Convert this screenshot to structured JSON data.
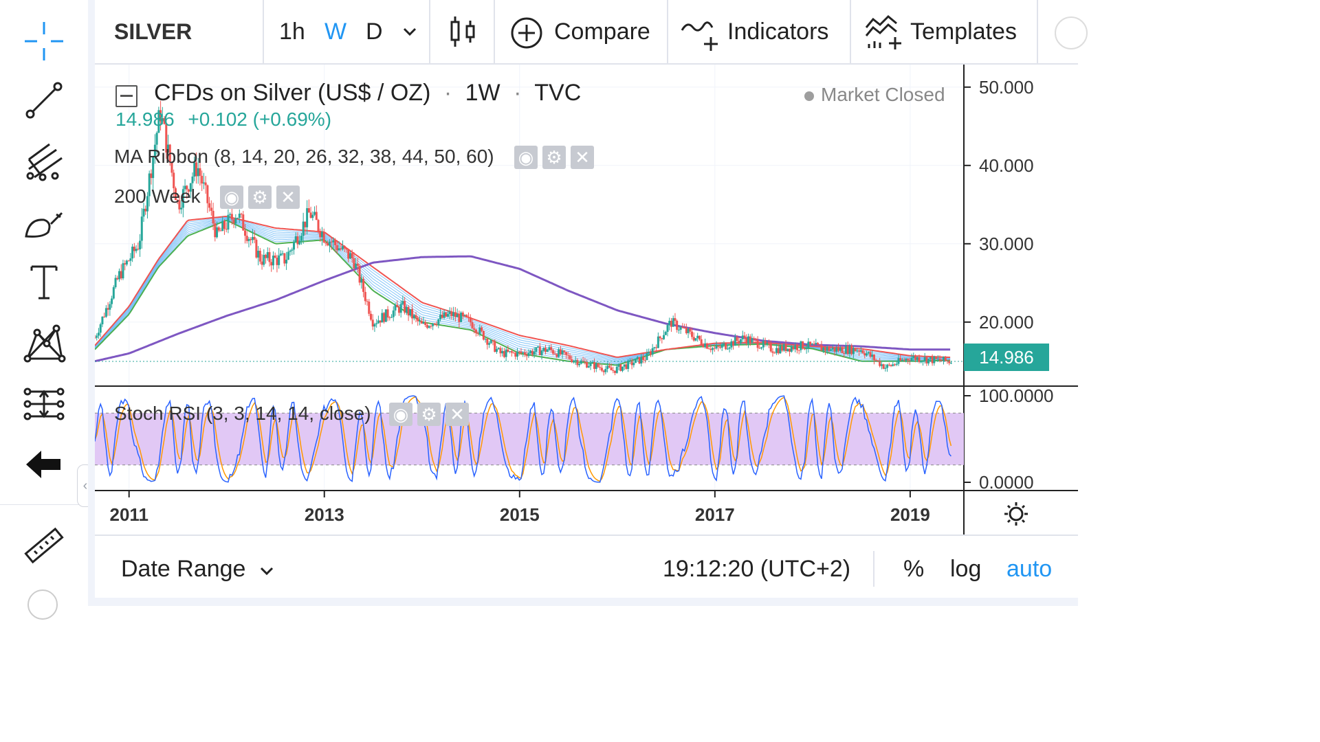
{
  "toolbar": {
    "symbol": "SILVER",
    "intervals": [
      "1h",
      "W",
      "D"
    ],
    "active_interval": "W",
    "compare_label": "Compare",
    "indicators_label": "Indicators",
    "templates_label": "Templates"
  },
  "sidebar": {
    "tools": [
      "crosshair-icon",
      "trend-line-icon",
      "pitchfork-icon",
      "brush-icon",
      "text-icon",
      "pattern-icon",
      "prediction-icon",
      "back-arrow-icon",
      "ruler-icon"
    ]
  },
  "chart": {
    "title": "CFDs on Silver (US$ / OZ)",
    "interval": "1W",
    "source": "TVC",
    "title_sep": "·",
    "last_price": "14.986",
    "change": "+0.102 (+0.69%)",
    "market_status": "Market Closed",
    "price_label": "14.986",
    "indicators": [
      {
        "label": "MA Ribbon (8, 14, 20, 26, 32, 38, 44, 50, 60)"
      },
      {
        "label": "200 Week"
      }
    ],
    "oscillator": {
      "label": "Stoch RSI (3, 3, 14, 14, close)"
    }
  },
  "chart_data": [
    {
      "type": "line",
      "title": "CFDs on Silver (US$ / OZ)",
      "y_ticks": [
        "50.000",
        "40.000",
        "30.000",
        "20.000"
      ],
      "ylim": [
        12,
        52
      ],
      "x_ticks": [
        "2011",
        "2013",
        "2015",
        "2017",
        "2019"
      ],
      "series": [
        {
          "name": "200 Week",
          "color": "#7e57c2",
          "x": [
            2010.65,
            2011.0,
            2011.5,
            2012.0,
            2012.5,
            2013.0,
            2013.5,
            2014.0,
            2014.5,
            2015.0,
            2015.5,
            2016.0,
            2016.5,
            2017.0,
            2017.5,
            2018.0,
            2018.5,
            2019.0,
            2019.4
          ],
          "values": [
            15.0,
            16.0,
            18.5,
            20.8,
            22.8,
            25.3,
            27.6,
            28.3,
            28.4,
            26.8,
            24.0,
            21.5,
            19.8,
            18.6,
            17.6,
            17.1,
            16.9,
            16.5,
            16.5
          ]
        },
        {
          "name": "MA Ribbon slow",
          "color": "#ef5350",
          "x": [
            2010.65,
            2011.0,
            2011.3,
            2011.6,
            2012.0,
            2012.5,
            2013.0,
            2013.5,
            2014.0,
            2014.5,
            2015.0,
            2015.5,
            2016.0,
            2016.5,
            2017.0,
            2017.5,
            2018.0,
            2018.5,
            2019.0,
            2019.4
          ],
          "values": [
            17.0,
            22.0,
            28.0,
            33.0,
            33.5,
            32.0,
            31.5,
            27.0,
            22.5,
            20.5,
            18.3,
            17.0,
            15.5,
            16.5,
            17.3,
            17.4,
            16.9,
            16.6,
            15.7,
            15.5
          ]
        },
        {
          "name": "MA Ribbon fast",
          "color": "#4caf50",
          "x": [
            2010.65,
            2011.0,
            2011.3,
            2011.6,
            2012.0,
            2012.5,
            2013.0,
            2013.5,
            2014.0,
            2014.5,
            2015.0,
            2015.5,
            2016.0,
            2016.5,
            2017.0,
            2017.5,
            2018.0,
            2018.5,
            2019.0,
            2019.4
          ],
          "values": [
            16.5,
            21.0,
            27.0,
            31.0,
            33.0,
            30.0,
            30.5,
            24.0,
            20.0,
            19.0,
            16.0,
            15.0,
            14.5,
            16.5,
            17.0,
            17.2,
            16.6,
            15.0,
            15.0,
            15.1
          ]
        },
        {
          "name": "Price",
          "color": "#26a69a",
          "x": [
            2010.65,
            2010.9,
            2011.1,
            2011.32,
            2011.5,
            2011.7,
            2011.9,
            2012.1,
            2012.35,
            2012.6,
            2012.85,
            2013.0,
            2013.3,
            2013.5,
            2013.8,
            2014.0,
            2014.3,
            2014.5,
            2014.8,
            2015.0,
            2015.3,
            2015.6,
            2015.95,
            2016.3,
            2016.55,
            2016.8,
            2017.0,
            2017.3,
            2017.6,
            2017.9,
            2018.2,
            2018.5,
            2018.75,
            2019.0,
            2019.2,
            2019.4
          ],
          "values": [
            18.0,
            26.0,
            30.0,
            47.0,
            35.0,
            40.0,
            31.0,
            34.0,
            28.0,
            28.0,
            34.0,
            31.0,
            28.0,
            20.0,
            22.0,
            19.5,
            21.0,
            20.0,
            16.0,
            16.0,
            16.5,
            15.0,
            13.8,
            15.5,
            20.0,
            18.0,
            16.5,
            18.0,
            16.5,
            17.0,
            16.5,
            16.5,
            14.2,
            15.5,
            15.2,
            15.0
          ]
        }
      ]
    },
    {
      "type": "line",
      "title": "Stoch RSI (3, 3, 14, 14, close)",
      "y_ticks": [
        "100.0000",
        "0.0000"
      ],
      "ylim": [
        0,
        100
      ],
      "bands": [
        20,
        80
      ],
      "series": [
        {
          "name": "K",
          "color": "#2962ff"
        },
        {
          "name": "D",
          "color": "#ff9800"
        }
      ]
    }
  ],
  "bottombar": {
    "date_range_label": "Date Range",
    "clock": "19:12:20 (UTC+2)",
    "percent_label": "%",
    "log_label": "log",
    "auto_label": "auto"
  },
  "colors": {
    "accent": "#2196f3",
    "up": "#26a69a",
    "down": "#ef5350",
    "ma200": "#7e57c2",
    "rsi_band": "#e1c8f5"
  }
}
